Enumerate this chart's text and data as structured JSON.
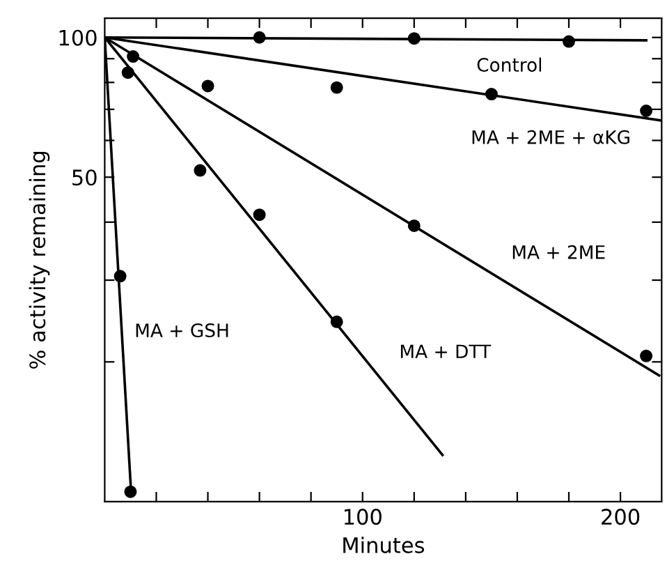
{
  "chart_data": {
    "type": "scatter",
    "xlabel": "Minutes",
    "ylabel": "% activity remaining",
    "log": "y",
    "xlim": [
      0,
      216
    ],
    "ylim": [
      10,
      110
    ],
    "xticks": [
      {
        "value": 20,
        "label": null
      },
      {
        "value": 40,
        "label": null
      },
      {
        "value": 60,
        "label": null
      },
      {
        "value": 80,
        "label": null
      },
      100,
      {
        "value": 120,
        "label": null
      },
      {
        "value": 140,
        "label": null
      },
      {
        "value": 160,
        "label": null
      },
      {
        "value": 180,
        "label": null
      },
      200
    ],
    "yticks": [
      {
        "value": 20,
        "label": null
      },
      {
        "value": 30,
        "label": null
      },
      {
        "value": 40,
        "label": null
      },
      50,
      {
        "value": 60,
        "label": null
      },
      {
        "value": 70,
        "label": null
      },
      {
        "value": 80,
        "label": null
      },
      {
        "value": 90,
        "label": null
      },
      100
    ],
    "grid": false,
    "series": [
      {
        "color": "#000000",
        "marker": "circle",
        "x": [
          60,
          120,
          180
        ],
        "values": [
          100,
          99.5,
          98
        ]
      },
      {
        "type": "line",
        "name": "Control",
        "color": "#000000",
        "marker": "none",
        "x": [
          0,
          210
        ],
        "values": [
          100,
          98.6
        ]
      },
      {
        "color": "#000000",
        "marker": "circle",
        "x": [
          40,
          90,
          150,
          210
        ],
        "values": [
          78.6,
          78,
          75.5,
          69.5
        ]
      },
      {
        "type": "line",
        "name": "MA + 2ME + αKG",
        "color": "#000000",
        "marker": "none",
        "x": [
          0,
          216
        ],
        "values": [
          100,
          66.2
        ]
      },
      {
        "color": "#000000",
        "marker": "circle",
        "x": [
          11,
          120,
          210
        ],
        "values": [
          91,
          39.3,
          20.6
        ]
      },
      {
        "type": "line",
        "name": "MA + 2ME",
        "color": "#000000",
        "marker": "none",
        "x": [
          0,
          215
        ],
        "values": [
          100,
          18.7
        ]
      },
      {
        "color": "#000000",
        "marker": "circle",
        "x": [
          9,
          37,
          60,
          90
        ],
        "values": [
          84,
          51.7,
          41.5,
          24.4
        ]
      },
      {
        "type": "line",
        "name": "MA + DTT",
        "color": "#000000",
        "marker": "none",
        "x": [
          0,
          131
        ],
        "values": [
          100,
          12.6
        ]
      },
      {
        "color": "#000000",
        "marker": "circle",
        "x": [
          6,
          10
        ],
        "values": [
          30.6,
          10.5
        ]
      },
      {
        "type": "line",
        "name": "MA + GSH",
        "color": "#000000",
        "marker": "none",
        "x": [
          0,
          10.3
        ],
        "values": [
          100,
          10.3
        ]
      }
    ]
  }
}
